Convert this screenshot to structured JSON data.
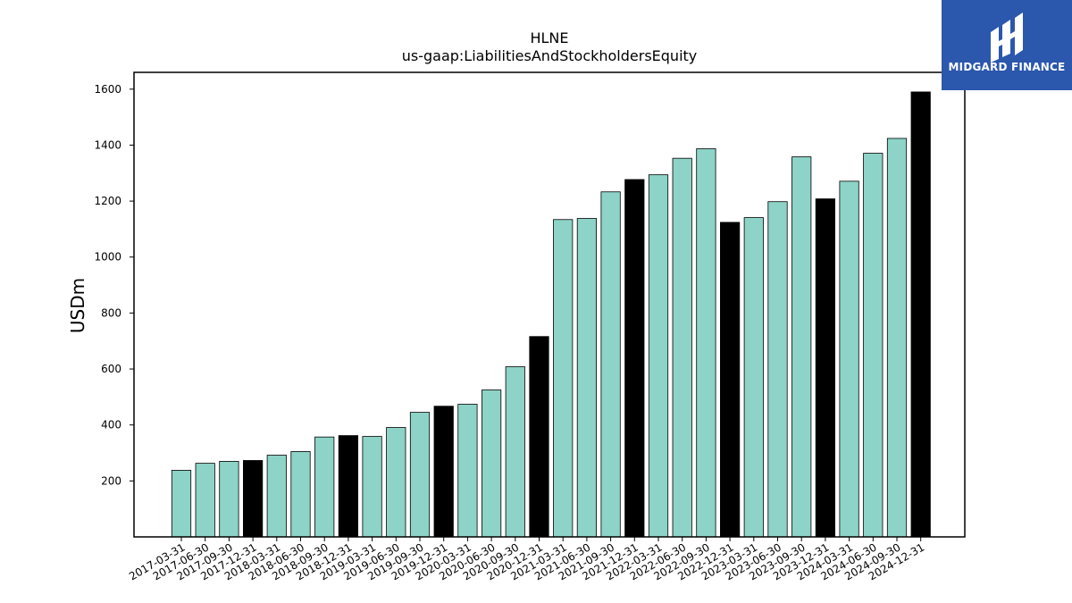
{
  "chart_data": {
    "type": "bar",
    "title": "HLNE",
    "subtitle": "us-gaap:LiabilitiesAndStockholdersEquity",
    "xlabel": "",
    "ylabel": "USDm",
    "ylim": [
      0,
      1660
    ],
    "yticks": [
      200,
      400,
      600,
      800,
      1000,
      1200,
      1400,
      1600
    ],
    "grid": false,
    "categories": [
      "2017-03-31",
      "2017-06-30",
      "2017-09-30",
      "2017-12-31",
      "2018-03-31",
      "2018-06-30",
      "2018-09-30",
      "2018-12-31",
      "2019-03-31",
      "2019-06-30",
      "2019-09-30",
      "2019-12-31",
      "2020-03-31",
      "2020-06-30",
      "2020-09-30",
      "2020-12-31",
      "2021-03-31",
      "2021-06-30",
      "2021-09-30",
      "2021-12-31",
      "2022-03-31",
      "2022-06-30",
      "2022-09-30",
      "2022-12-31",
      "2023-03-31",
      "2023-06-30",
      "2023-09-30",
      "2023-12-31",
      "2024-03-31",
      "2024-06-30",
      "2024-09-30",
      "2024-12-31"
    ],
    "values": [
      238,
      263,
      270,
      273,
      292,
      305,
      357,
      362,
      359,
      391,
      445,
      467,
      474,
      525,
      608,
      716,
      1134,
      1138,
      1233,
      1277,
      1294,
      1353,
      1387,
      1124,
      1141,
      1198,
      1358,
      1208,
      1271,
      1371,
      1424,
      1590
    ],
    "bar_colors": [
      "#8dd3c7",
      "#8dd3c7",
      "#8dd3c7",
      "#000000",
      "#8dd3c7",
      "#8dd3c7",
      "#8dd3c7",
      "#000000",
      "#8dd3c7",
      "#8dd3c7",
      "#8dd3c7",
      "#000000",
      "#8dd3c7",
      "#8dd3c7",
      "#8dd3c7",
      "#000000",
      "#8dd3c7",
      "#8dd3c7",
      "#8dd3c7",
      "#000000",
      "#8dd3c7",
      "#8dd3c7",
      "#8dd3c7",
      "#000000",
      "#8dd3c7",
      "#8dd3c7",
      "#8dd3c7",
      "#000000",
      "#8dd3c7",
      "#8dd3c7",
      "#8dd3c7",
      "#000000"
    ]
  },
  "logo": {
    "text": "MIDGARD FINANCE",
    "background": "#2b57ad"
  }
}
